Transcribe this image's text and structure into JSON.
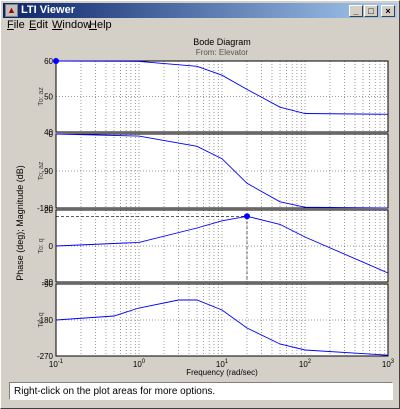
{
  "window": {
    "title": "LTI Viewer",
    "controls": {
      "minimize": "_",
      "maximize": "□",
      "close": "×"
    }
  },
  "menu": {
    "items": [
      {
        "label": "File",
        "accel": "F",
        "rest": "ile"
      },
      {
        "label": "Edit",
        "accel": "E",
        "rest": "dit"
      },
      {
        "label": "Window",
        "accel": "W",
        "rest": "indow"
      },
      {
        "label": "Help",
        "accel": "H",
        "rest": "elp"
      }
    ]
  },
  "plot": {
    "title": "Bode Diagram",
    "subtitle": "From: Elevator",
    "y_label": "Phase (deg); Magnitude (dB)",
    "x_label": "Frequency (rad/sec)",
    "x_ticks": [
      {
        "base": "10",
        "exp": "-1"
      },
      {
        "base": "10",
        "exp": "0"
      },
      {
        "base": "10",
        "exp": "1"
      },
      {
        "base": "10",
        "exp": "2"
      },
      {
        "base": "10",
        "exp": "3"
      }
    ],
    "panels": [
      {
        "channel": "To: az",
        "ticks": [
          "60",
          "50",
          "40"
        ]
      },
      {
        "channel": "To: az",
        "ticks": [
          "0",
          "-90",
          "-180"
        ]
      },
      {
        "channel": "To: q",
        "ticks": [
          "20",
          "0",
          "-20"
        ]
      },
      {
        "channel": "To: q",
        "ticks": [
          "-90",
          "-180",
          "-270"
        ]
      }
    ],
    "line_color": "#0000ff",
    "marker_color": "#0000ff"
  },
  "chart_data": [
    {
      "type": "line",
      "title": "Bode Diagram",
      "subtitle": "From: Elevator",
      "xlabel": "Frequency (rad/sec)",
      "ylabel": "Magnitude (dB)",
      "channel": "To: az",
      "x_scale": "log",
      "xlim": [
        0.1,
        1000
      ],
      "ylim": [
        40,
        60
      ],
      "grid": true,
      "x": [
        0.1,
        1,
        5,
        10,
        20,
        50,
        100,
        1000
      ],
      "values": [
        60,
        59.9,
        58.5,
        56,
        52,
        47,
        45.2,
        45
      ],
      "marker": {
        "x": 0.1,
        "y": 60
      }
    },
    {
      "type": "line",
      "xlabel": "Frequency (rad/sec)",
      "ylabel": "Phase (deg)",
      "channel": "To: az",
      "x_scale": "log",
      "xlim": [
        0.1,
        1000
      ],
      "ylim": [
        -180,
        0
      ],
      "grid": true,
      "x": [
        0.1,
        1,
        5,
        10,
        20,
        50,
        100,
        1000
      ],
      "values": [
        0,
        -5,
        -30,
        -60,
        -120,
        -165,
        -178,
        -180
      ]
    },
    {
      "type": "line",
      "xlabel": "Frequency (rad/sec)",
      "ylabel": "Magnitude (dB)",
      "channel": "To: q",
      "x_scale": "log",
      "xlim": [
        0.1,
        1000
      ],
      "ylim": [
        -20,
        20
      ],
      "grid": true,
      "x": [
        0.1,
        1,
        5,
        10,
        20,
        50,
        100,
        1000
      ],
      "values": [
        0,
        2,
        10,
        14,
        16.5,
        12,
        5,
        -15
      ],
      "marker": {
        "x": 20,
        "y": 16.5
      }
    },
    {
      "type": "line",
      "xlabel": "Frequency (rad/sec)",
      "ylabel": "Phase (deg)",
      "channel": "To: q",
      "x_scale": "log",
      "xlim": [
        0.1,
        1000
      ],
      "ylim": [
        -270,
        -90
      ],
      "grid": true,
      "x": [
        0.1,
        0.5,
        1,
        3,
        5,
        10,
        20,
        50,
        100,
        1000
      ],
      "values": [
        -180,
        -170,
        -150,
        -130,
        -130,
        -155,
        -200,
        -240,
        -255,
        -268
      ]
    }
  ],
  "status": {
    "text": "Right-click on the plot areas for more options."
  }
}
